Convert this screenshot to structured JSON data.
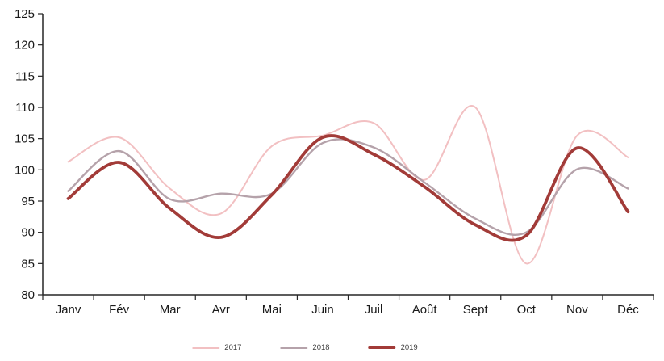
{
  "chart_data": {
    "type": "line",
    "smooth": true,
    "title": "",
    "xlabel": "",
    "ylabel": "",
    "categories": [
      "Janv",
      "Fév",
      "Mar",
      "Avr",
      "Mai",
      "Juin",
      "Juil",
      "Août",
      "Sept",
      "Oct",
      "Nov",
      "Déc"
    ],
    "series": [
      {
        "name": "2017",
        "color": "#f2c0c2",
        "stroke_width": 2,
        "values": [
          101.3,
          105.2,
          97.0,
          93.0,
          103.8,
          105.5,
          107.5,
          98.4,
          110.0,
          85.0,
          105.5,
          102.0
        ]
      },
      {
        "name": "2018",
        "color": "#b5a2aa",
        "stroke_width": 2.4,
        "values": [
          96.6,
          103.0,
          95.3,
          96.2,
          96.2,
          104.3,
          103.6,
          98.0,
          92.2,
          90.0,
          100.1,
          97.0
        ]
      },
      {
        "name": "2019",
        "color": "#a23b38",
        "stroke_width": 3.8,
        "values": [
          95.4,
          101.2,
          93.8,
          89.2,
          96.0,
          105.2,
          102.5,
          97.3,
          91.2,
          89.5,
          103.5,
          93.3
        ]
      }
    ],
    "ylim": [
      80,
      125
    ],
    "ytick_step": 5,
    "y_tick_labels": [
      "80",
      "85",
      "90",
      "95",
      "100",
      "105",
      "110",
      "115",
      "120",
      "125"
    ],
    "grid": "off",
    "legend_position": "bottom",
    "legend_labels": [
      "2017",
      "2018",
      "2019"
    ],
    "axis_color": "#262626",
    "tick_label_color": "#1a1a1a",
    "legend_text_color": "#404040"
  }
}
